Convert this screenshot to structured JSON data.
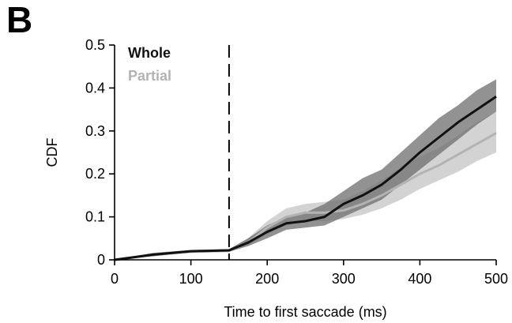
{
  "panel_label": "B",
  "chart_data": {
    "type": "line",
    "title": "",
    "xlabel": "Time to first saccade (ms)",
    "ylabel": "CDF",
    "xlim": [
      0,
      500
    ],
    "ylim": [
      0,
      0.5
    ],
    "xticks": [
      0,
      100,
      200,
      300,
      400,
      500
    ],
    "xtick_labels": [
      "0",
      "100",
      "200",
      "300",
      "400",
      "500"
    ],
    "yticks": [
      0,
      0.1,
      0.2,
      0.3,
      0.4,
      0.5
    ],
    "ytick_labels": [
      "0",
      "0.1",
      "0.2",
      "0.3",
      "0.4",
      "0.5"
    ],
    "grid": false,
    "legend_position": "top-left",
    "vline_x": 150,
    "x": [
      0,
      50,
      100,
      150,
      175,
      200,
      225,
      250,
      275,
      300,
      325,
      350,
      375,
      400,
      425,
      450,
      475,
      500
    ],
    "series": [
      {
        "name": "Whole",
        "color": "#111111",
        "band_color": "#6e6e6e",
        "values": [
          0,
          0.012,
          0.02,
          0.022,
          0.04,
          0.065,
          0.085,
          0.09,
          0.1,
          0.13,
          0.15,
          0.175,
          0.21,
          0.25,
          0.285,
          0.32,
          0.35,
          0.38
        ],
        "lower": [
          0,
          0.008,
          0.017,
          0.019,
          0.032,
          0.05,
          0.07,
          0.075,
          0.08,
          0.1,
          0.12,
          0.14,
          0.175,
          0.21,
          0.245,
          0.28,
          0.315,
          0.345
        ],
        "upper": [
          0,
          0.016,
          0.023,
          0.025,
          0.05,
          0.08,
          0.1,
          0.11,
          0.13,
          0.16,
          0.19,
          0.21,
          0.25,
          0.29,
          0.33,
          0.36,
          0.395,
          0.42
        ]
      },
      {
        "name": "Partial",
        "color": "#b3b3b3",
        "band_color": "#c8c8c8",
        "values": [
          0,
          0.012,
          0.019,
          0.021,
          0.04,
          0.075,
          0.1,
          0.11,
          0.11,
          0.115,
          0.13,
          0.15,
          0.175,
          0.2,
          0.22,
          0.245,
          0.27,
          0.295
        ],
        "lower": [
          0,
          0.009,
          0.016,
          0.018,
          0.033,
          0.06,
          0.08,
          0.09,
          0.09,
          0.095,
          0.105,
          0.12,
          0.14,
          0.165,
          0.185,
          0.205,
          0.23,
          0.25
        ],
        "upper": [
          0,
          0.015,
          0.022,
          0.024,
          0.05,
          0.09,
          0.12,
          0.13,
          0.135,
          0.14,
          0.16,
          0.185,
          0.215,
          0.24,
          0.26,
          0.29,
          0.32,
          0.345
        ]
      }
    ]
  }
}
